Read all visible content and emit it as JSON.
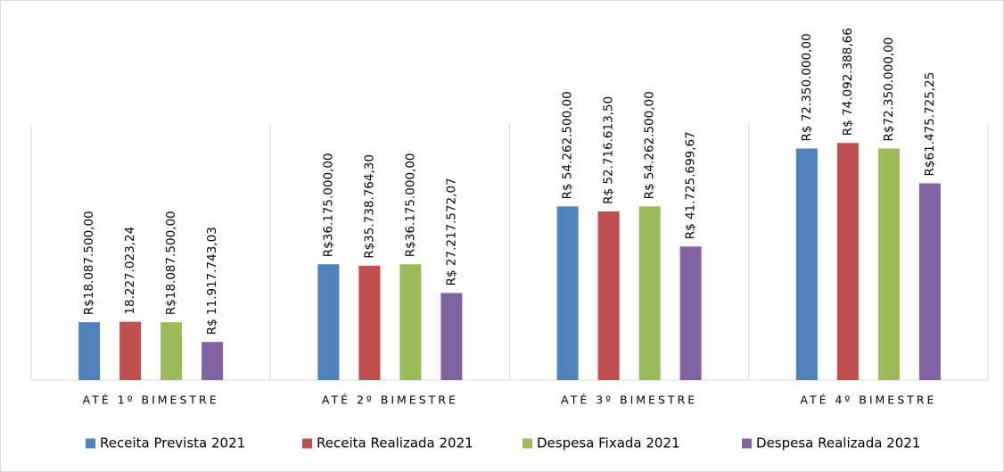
{
  "chart_data": {
    "type": "bar",
    "categories": [
      "ATÉ 1º BIMESTRE",
      "ATÉ 2º BIMESTRE",
      "ATÉ 3º BIMESTRE",
      "ATÉ 4º BIMESTRE"
    ],
    "series": [
      {
        "name": "Receita Prevista 2021",
        "color": "#4f81bd",
        "values": [
          18087500,
          36175000,
          54262500,
          72350000
        ],
        "value_labels": [
          "R$18.087.500,00",
          "R$36.175.000,00",
          "R$ 54.262.500,00",
          "R$ 72.350.000,00"
        ]
      },
      {
        "name": "Receita Realizada 2021",
        "color": "#c0504d",
        "values": [
          18227023.24,
          35738764.3,
          52716613.5,
          74092388.66
        ],
        "value_labels": [
          "18.227.023,24",
          "R$35.738.764,30",
          "R$ 52.716.613,50",
          "R$ 74.092.388,66"
        ]
      },
      {
        "name": "Despesa Fixada 2021",
        "color": "#9bbb59",
        "values": [
          18087500,
          36175000,
          54262500,
          72350000
        ],
        "value_labels": [
          "R$18.087.500,00",
          "R$36.175.000,00",
          "R$ 54.262.500,00",
          "R$72.350.000,00"
        ]
      },
      {
        "name": "Despesa Realizada 2021",
        "color": "#8064a2",
        "values": [
          11917743.03,
          27217572.07,
          41725699.67,
          61475725.25
        ],
        "value_labels": [
          "R$ 11.917.743,03",
          "R$ 27.217.572,07",
          "R$ 41.725.699,67",
          "R$61.475.725,25"
        ]
      }
    ],
    "ylim": [
      0,
      80000000
    ],
    "legend": "bottom"
  }
}
